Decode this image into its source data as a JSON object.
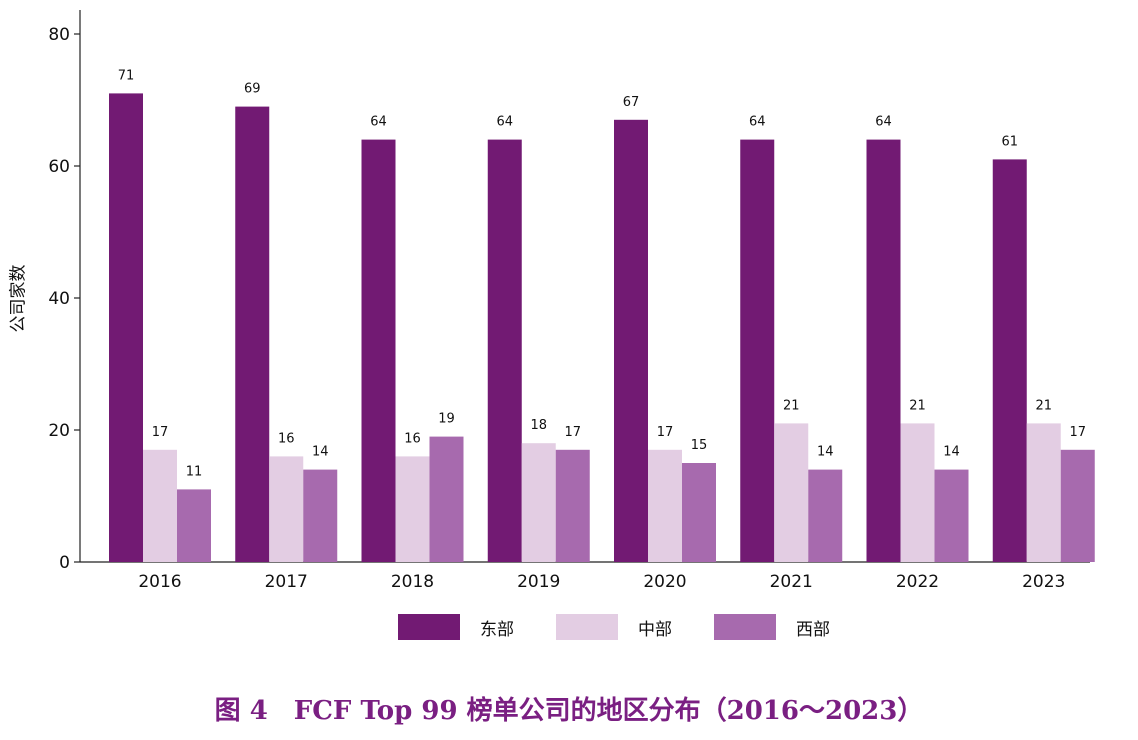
{
  "chart_data": {
    "type": "bar",
    "title": "",
    "xlabel": "",
    "ylabel": "公司家数",
    "ylim": [
      0,
      80
    ],
    "yticks": [
      0,
      20,
      40,
      60,
      80
    ],
    "categories": [
      "2016",
      "2017",
      "2018",
      "2019",
      "2020",
      "2021",
      "2022",
      "2023"
    ],
    "series": [
      {
        "name": "东部",
        "color": "#721a73",
        "values": [
          71,
          69,
          64,
          64,
          67,
          64,
          64,
          61
        ]
      },
      {
        "name": "中部",
        "color": "#e3cde3",
        "values": [
          17,
          16,
          16,
          18,
          17,
          21,
          21,
          21
        ]
      },
      {
        "name": "西部",
        "color": "#a76aae",
        "values": [
          11,
          14,
          19,
          17,
          15,
          14,
          14,
          17
        ]
      }
    ],
    "legend_position": "bottom-center",
    "grid": false
  },
  "caption": "图 4　FCF Top 99 榜单公司的地区分布（2016～2023）"
}
